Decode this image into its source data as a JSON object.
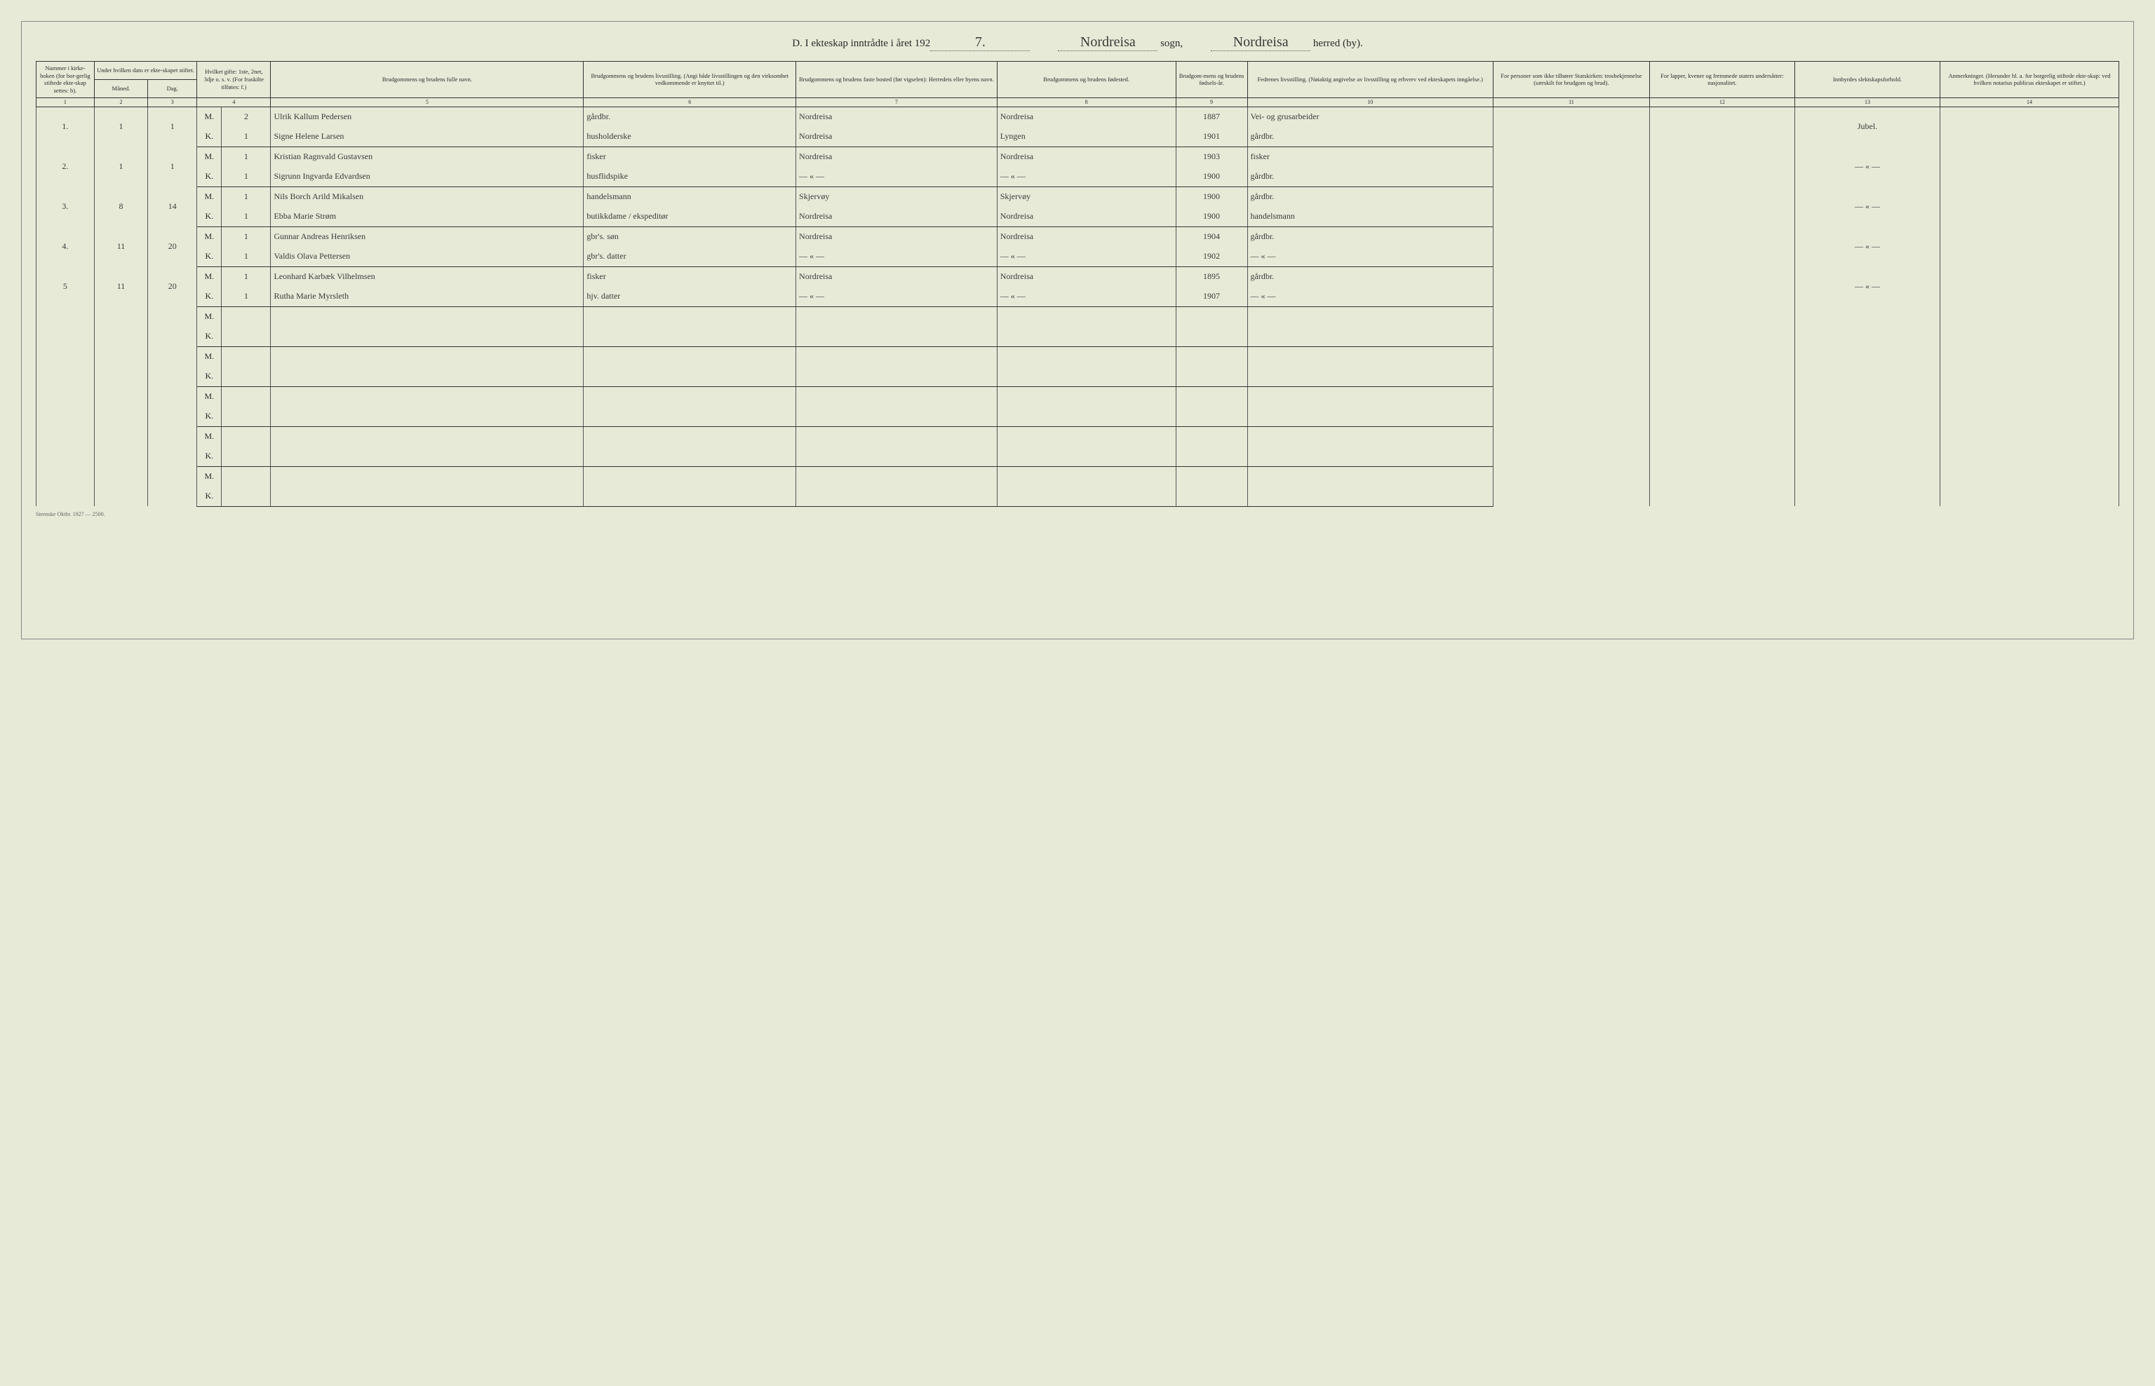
{
  "title": {
    "prefix": "D.  I ekteskap inntrådte i året 192",
    "year_suffix": "7.",
    "sogn_hand": "Nordreisa",
    "sogn_label": "sogn,",
    "herred_hand": "Nordreisa",
    "herred_label": "herred (by)."
  },
  "headers": {
    "c1": "Nummer i kirke-boken (for bor-gerlig stiftede ekte-skap settes: b).",
    "c2": "Under hvilken dato er ekte-skapet stiftet.",
    "c2a": "Måned.",
    "c2b": "Dag.",
    "c4": "Hvilket gifte: 1ste, 2net, 3dje o. s. v. (For fraskilte tilføies: f.)",
    "c5": "Brudgommens og brudens fulle navn.",
    "c6": "Brudgommens og brudens livsstilling. (Angi både livsstillingen og den virksomhet vedkommende er knyttet til.)",
    "c7": "Brudgommens og brudens faste bosted (før vigselen): Herredets eller byens navn.",
    "c8": "Brudgommens og brudens fødested.",
    "c9": "Brudgom-mens og brudens fødsels-år.",
    "c10": "Fedrenes livsstilling. (Nøiaktig angivelse av livsstilling og erhverv ved ekteskapets inngåelse.)",
    "c11": "For personer som ikke tilhører Statskirken: trosbekjennelse (særskilt for brudgom og brud).",
    "c12": "For lapper, kvener og fremmede staters undersåtter: nasjonalitet.",
    "c13": "Innbyrdes slektskapsforhold.",
    "c14": "Anmerkninger. (Herunder bl. a. for borgerlig stiftede ekte-skap: ved hvilken notarius publicus ekteskapet er stiftet.)"
  },
  "colnums": [
    "1",
    "2",
    "3",
    "4",
    "5",
    "6",
    "7",
    "8",
    "9",
    "10",
    "11",
    "12",
    "13",
    "14"
  ],
  "mk": {
    "m": "M.",
    "k": "K."
  },
  "rows": [
    {
      "num": "1.",
      "mon": "1",
      "day": "1",
      "m": {
        "gifte": "2",
        "name": "Ulrik Kallum Pedersen",
        "occ": "gårdbr.",
        "res": "Nordreisa",
        "birth": "Nordreisa",
        "year": "1887",
        "father": "Vei- og grusarbeider"
      },
      "k": {
        "gifte": "1",
        "name": "Signe Helene Larsen",
        "occ": "husholderske",
        "res": "Nordreisa",
        "birth": "Lyngen",
        "year": "1901",
        "father": "gårdbr."
      },
      "kin": "Jubel."
    },
    {
      "num": "2.",
      "mon": "1",
      "day": "1",
      "m": {
        "gifte": "1",
        "name": "Kristian Ragnvald Gustavsen",
        "occ": "fisker",
        "res": "Nordreisa",
        "birth": "Nordreisa",
        "year": "1903",
        "father": "fisker"
      },
      "k": {
        "gifte": "1",
        "name": "Sigrunn Ingvarda Edvardsen",
        "occ": "husflidspike",
        "res": "— « —",
        "birth": "— « —",
        "year": "1900",
        "father": "gårdbr."
      },
      "kin": "— « —"
    },
    {
      "num": "3.",
      "mon": "8",
      "day": "14",
      "m": {
        "gifte": "1",
        "name": "Nils Borch Arild Mikalsen",
        "occ": "handelsmann",
        "res": "Skjervøy",
        "birth": "Skjervøy",
        "year": "1900",
        "father": "gårdbr."
      },
      "k": {
        "gifte": "1",
        "name": "Ebba Marie Strøm",
        "occ": "butikkdame / ekspeditør",
        "res": "Nordreisa",
        "birth": "Nordreisa",
        "year": "1900",
        "father": "handelsmann"
      },
      "kin": "— « —"
    },
    {
      "num": "4.",
      "mon": "11",
      "day": "20",
      "m": {
        "gifte": "1",
        "name": "Gunnar Andreas Henriksen",
        "occ": "gbr's. søn",
        "res": "Nordreisa",
        "birth": "Nordreisa",
        "year": "1904",
        "father": "gårdbr."
      },
      "k": {
        "gifte": "1",
        "name": "Valdis Olava Pettersen",
        "occ": "gbr's. datter",
        "res": "— « —",
        "birth": "— « —",
        "year": "1902",
        "father": "— « —"
      },
      "kin": "— « —"
    },
    {
      "num": "5",
      "mon": "11",
      "day": "20",
      "m": {
        "gifte": "1",
        "name": "Leonhard Karbæk Vilhelmsen",
        "occ": "fisker",
        "res": "Nordreisa",
        "birth": "Nordreisa",
        "year": "1895",
        "father": "gårdbr."
      },
      "k": {
        "gifte": "1",
        "name": "Rutha Marie Myrsleth",
        "occ": "hjv. datter",
        "res": "— « —",
        "birth": "— « —",
        "year": "1907",
        "father": "— « —"
      },
      "kin": "— « —"
    }
  ],
  "blank_pairs": 5,
  "footer": "Steenske  Oktbr. 1927 — 2500."
}
